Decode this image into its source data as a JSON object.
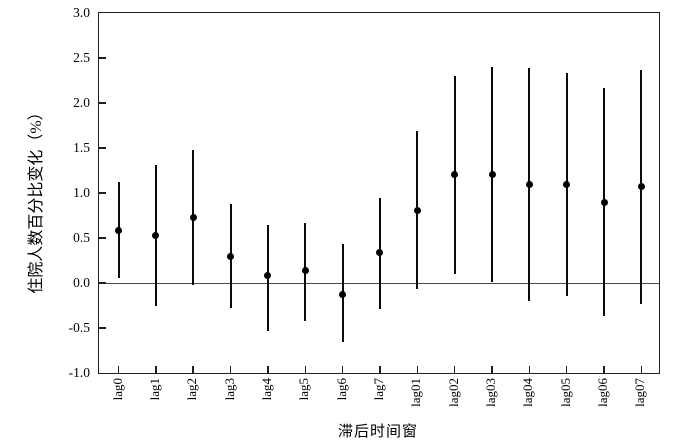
{
  "figure": {
    "background_color": "#ffffff",
    "axis_color": "#1f1f1f",
    "data_color": "#000000",
    "zero_line_color": "#4a4a4a"
  },
  "chart_data": {
    "type": "scatter",
    "subtype": "point-estimate-with-error-bars",
    "title": "",
    "xlabel": "滞后时间窗",
    "ylabel": "住院人数百分比变化（%）",
    "categories": [
      "lag0",
      "lag1",
      "lag2",
      "lag3",
      "lag4",
      "lag5",
      "lag6",
      "lag7",
      "lag01",
      "lag02",
      "lag03",
      "lag04",
      "lag05",
      "lag06",
      "lag07"
    ],
    "series": [
      {
        "name": "point_estimate",
        "values": [
          0.58,
          0.53,
          0.73,
          0.3,
          0.08,
          0.14,
          -0.13,
          0.34,
          0.81,
          1.21,
          1.21,
          1.1,
          1.1,
          0.9,
          1.07
        ]
      },
      {
        "name": "ci_lower",
        "values": [
          0.06,
          -0.26,
          -0.02,
          -0.28,
          -0.53,
          -0.42,
          -0.66,
          -0.29,
          -0.07,
          0.1,
          0.01,
          -0.2,
          -0.14,
          -0.37,
          -0.23
        ]
      },
      {
        "name": "ci_upper",
        "values": [
          1.12,
          1.31,
          1.48,
          0.88,
          0.65,
          0.67,
          0.43,
          0.95,
          1.69,
          2.3,
          2.4,
          2.39,
          2.33,
          2.17,
          2.37
        ]
      }
    ],
    "ylim": [
      -1.0,
      3.0
    ],
    "yticks": [
      "3.0",
      "2.5",
      "2.0",
      "1.5",
      "1.0",
      "0.5",
      "0.0",
      "-0.5",
      "-1.0"
    ],
    "grid": false,
    "zero_reference_line": true,
    "legend": "none",
    "marker": "filled-circle",
    "error_bar_caps": false
  }
}
